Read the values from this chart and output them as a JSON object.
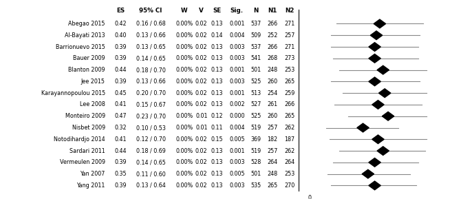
{
  "studies": [
    {
      "name": "Abegao 2015",
      "ES": 0.42,
      "CI_low": 0.16,
      "CI_high": 0.68,
      "W": "0.00%",
      "V": 0.02,
      "SE": 0.13,
      "Sig": "0.001",
      "N": 537,
      "N1": 266,
      "N2": 271
    },
    {
      "name": "Al-Bayati 2013",
      "ES": 0.4,
      "CI_low": 0.13,
      "CI_high": 0.66,
      "W": "0.00%",
      "V": 0.02,
      "SE": 0.14,
      "Sig": "0.004",
      "N": 509,
      "N1": 252,
      "N2": 257
    },
    {
      "name": "Barrionuevo 2015",
      "ES": 0.39,
      "CI_low": 0.13,
      "CI_high": 0.65,
      "W": "0.00%",
      "V": 0.02,
      "SE": 0.13,
      "Sig": "0.003",
      "N": 537,
      "N1": 266,
      "N2": 271
    },
    {
      "name": "Bauer 2009",
      "ES": 0.39,
      "CI_low": 0.14,
      "CI_high": 0.65,
      "W": "0.00%",
      "V": 0.02,
      "SE": 0.13,
      "Sig": "0.003",
      "N": 541,
      "N1": 268,
      "N2": 273
    },
    {
      "name": "Blanton 2009",
      "ES": 0.44,
      "CI_low": 0.18,
      "CI_high": 0.7,
      "W": "0.00%",
      "V": 0.02,
      "SE": 0.13,
      "Sig": "0.001",
      "N": 501,
      "N1": 248,
      "N2": 253
    },
    {
      "name": "Jee 2015",
      "ES": 0.39,
      "CI_low": 0.13,
      "CI_high": 0.66,
      "W": "0.00%",
      "V": 0.02,
      "SE": 0.13,
      "Sig": "0.003",
      "N": 525,
      "N1": 260,
      "N2": 265
    },
    {
      "name": "Karayannopoulou 2015",
      "ES": 0.45,
      "CI_low": 0.2,
      "CI_high": 0.7,
      "W": "0.00%",
      "V": 0.02,
      "SE": 0.13,
      "Sig": "0.001",
      "N": 513,
      "N1": 254,
      "N2": 259
    },
    {
      "name": "Lee 2008",
      "ES": 0.41,
      "CI_low": 0.15,
      "CI_high": 0.67,
      "W": "0.00%",
      "V": 0.02,
      "SE": 0.13,
      "Sig": "0.002",
      "N": 527,
      "N1": 261,
      "N2": 266
    },
    {
      "name": "Monteiro 2009",
      "ES": 0.47,
      "CI_low": 0.23,
      "CI_high": 0.7,
      "W": "0.00%",
      "V": 0.01,
      "SE": 0.12,
      "Sig": "0.000",
      "N": 525,
      "N1": 260,
      "N2": 265
    },
    {
      "name": "Nisbet 2009",
      "ES": 0.32,
      "CI_low": 0.1,
      "CI_high": 0.53,
      "W": "0.00%",
      "V": 0.01,
      "SE": 0.11,
      "Sig": "0.004",
      "N": 519,
      "N1": 257,
      "N2": 262
    },
    {
      "name": "Notodihardjo 2014",
      "ES": 0.41,
      "CI_low": 0.12,
      "CI_high": 0.7,
      "W": "0.00%",
      "V": 0.02,
      "SE": 0.15,
      "Sig": "0.005",
      "N": 369,
      "N1": 182,
      "N2": 187
    },
    {
      "name": "Sardari 2011",
      "ES": 0.44,
      "CI_low": 0.18,
      "CI_high": 0.69,
      "W": "0.00%",
      "V": 0.02,
      "SE": 0.13,
      "Sig": "0.001",
      "N": 519,
      "N1": 257,
      "N2": 262
    },
    {
      "name": "Vermeulen 2009",
      "ES": 0.39,
      "CI_low": 0.14,
      "CI_high": 0.65,
      "W": "0.00%",
      "V": 0.02,
      "SE": 0.13,
      "Sig": "0.003",
      "N": 528,
      "N1": 264,
      "N2": 264
    },
    {
      "name": "Yan 2007",
      "ES": 0.35,
      "CI_low": 0.11,
      "CI_high": 0.6,
      "W": "0.00%",
      "V": 0.02,
      "SE": 0.13,
      "Sig": "0.005",
      "N": 501,
      "N1": 248,
      "N2": 253
    },
    {
      "name": "Yang 2011",
      "ES": 0.39,
      "CI_low": 0.13,
      "CI_high": 0.64,
      "W": "0.00%",
      "V": 0.02,
      "SE": 0.13,
      "Sig": "0.003",
      "N": 535,
      "N1": 265,
      "N2": 270
    }
  ],
  "text_color": "#000000",
  "bg_color": "#ffffff",
  "diamond_color": "#000000",
  "line_color": "#888888",
  "fp_data_min": -0.05,
  "fp_data_max": 0.9,
  "zero_val": 0.0,
  "figwidth": 6.7,
  "figheight": 2.89,
  "dpi": 100
}
